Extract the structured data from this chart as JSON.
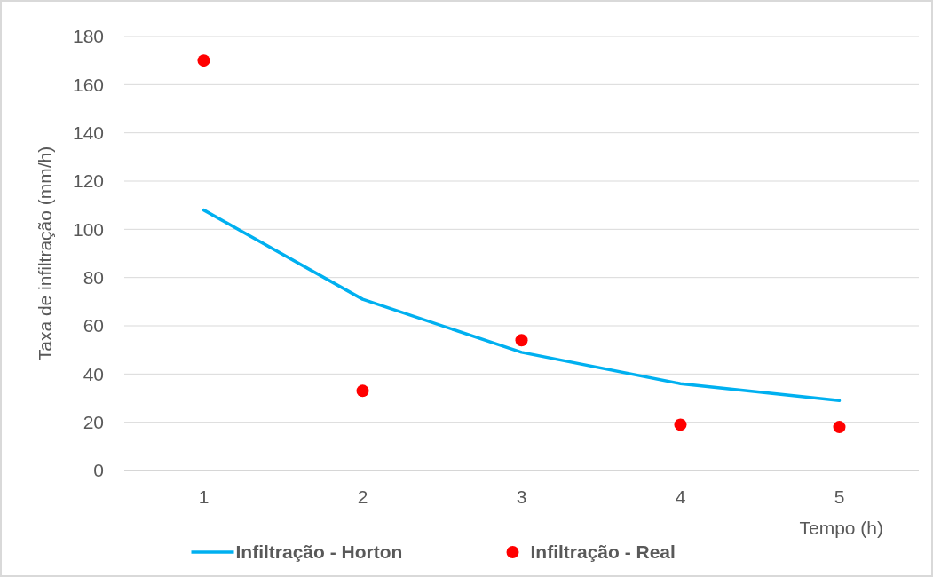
{
  "chart_data": {
    "type": "line",
    "xlabel": "Tempo (h)",
    "ylabel": "Taxa de infiltração (mm/h)",
    "categories": [
      "1",
      "2",
      "3",
      "4",
      "5"
    ],
    "series": [
      {
        "name": "Infiltração - Horton",
        "color": "#00b0f0",
        "values": [
          108,
          71,
          49,
          36,
          29
        ]
      },
      {
        "name": "Infiltração - Real",
        "type": "scatter",
        "marker": "circle",
        "color": "#ff0000",
        "values": [
          170,
          33,
          54,
          19,
          18
        ]
      }
    ],
    "ylim": [
      0,
      180
    ],
    "yticks": [
      0,
      20,
      40,
      60,
      80,
      100,
      120,
      140,
      160,
      180
    ],
    "grid": "y",
    "legend": "bottom",
    "line_style": "solid"
  }
}
